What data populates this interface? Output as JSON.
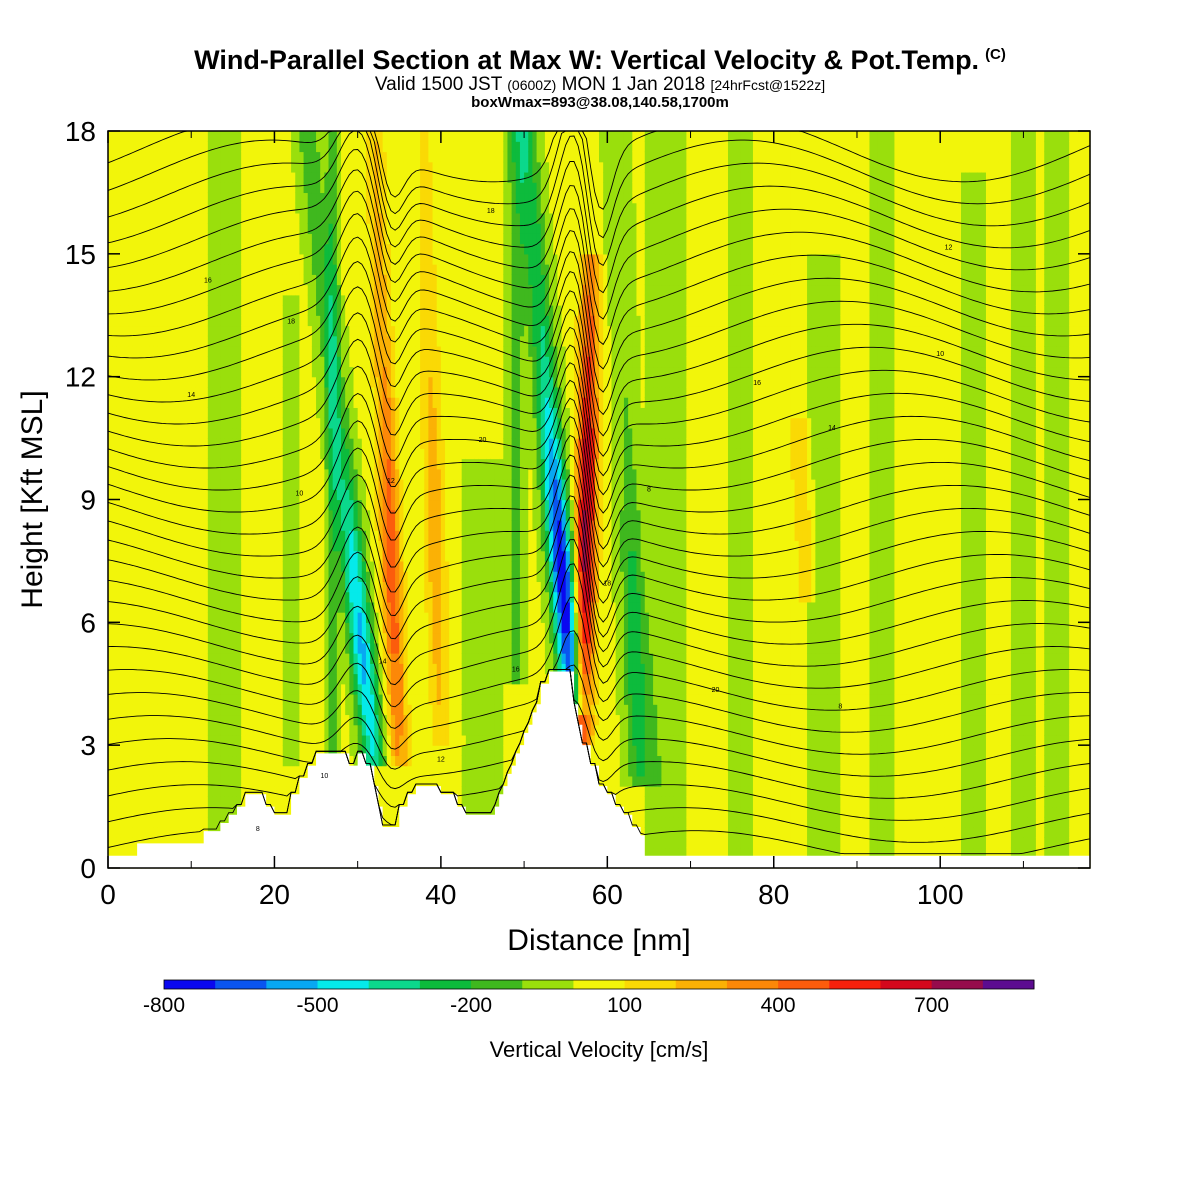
{
  "title": {
    "main": "Wind-Parallel Section at Max W: Vertical Velocity & Pot.Temp.",
    "mark": "(C)",
    "valid_prefix": "Valid 1500 JST",
    "valid_z": "(0600Z)",
    "valid_date": "MON 1 Jan 2018",
    "forecast": "[24hrFcst@1522z]",
    "boxline": "boxWmax=893@38.08,140.58,1700m"
  },
  "chart_data": {
    "type": "heatmap",
    "xlabel": "Distance [nm]",
    "ylabel": "Height [Kft MSL]",
    "xlim": [
      0,
      118
    ],
    "ylim": [
      0,
      18
    ],
    "xticks": [
      0,
      20,
      40,
      60,
      80,
      100
    ],
    "yticks": [
      0,
      3,
      6,
      9,
      12,
      15,
      18
    ],
    "colorbar": {
      "label": "Vertical Velocity [cm/s]",
      "tick_labels": [
        "-800",
        "-500",
        "-200",
        "100",
        "400",
        "700"
      ],
      "tick_values": [
        -800,
        -500,
        -200,
        100,
        400,
        700
      ],
      "levels": [
        -800,
        -700,
        -600,
        -500,
        -400,
        -300,
        -200,
        -100,
        0,
        100,
        200,
        300,
        400,
        500,
        600,
        700,
        800,
        900
      ],
      "colors": [
        "#0a08f0",
        "#0a55f0",
        "#08a8f2",
        "#05eaea",
        "#0bd88c",
        "#0dbb3c",
        "#3fb81e",
        "#9adf0c",
        "#f2f50a",
        "#fad905",
        "#fbb105",
        "#fc8808",
        "#fc5c0c",
        "#f6200c",
        "#d4081c",
        "#960c4c",
        "#5c0c90"
      ]
    },
    "background_velocity": 0,
    "downdrafts": [
      {
        "top_x": 24,
        "bottom_x": 32,
        "top_h": 18,
        "bottom_h": 2.5,
        "min": -550
      },
      {
        "top_x": 50,
        "bottom_x": 56,
        "top_h": 18,
        "bottom_h": 3.8,
        "min": -820
      },
      {
        "top_x": 61,
        "bottom_x": 64,
        "top_h": 18,
        "bottom_h": 2,
        "min": -300
      }
    ],
    "updrafts": [
      {
        "top_x": 32,
        "bottom_x": 35,
        "top_h": 18,
        "bottom_h": 2.5,
        "max": 450
      },
      {
        "top_x": 38,
        "bottom_x": 40,
        "top_h": 18,
        "bottom_h": 3,
        "max": 250
      },
      {
        "top_x": 58,
        "bottom_x": 57,
        "top_h": 15,
        "bottom_h": 3,
        "max": 720
      },
      {
        "top_x": 83,
        "bottom_x": 84,
        "top_h": 11,
        "bottom_h": 6.5,
        "max": 180
      }
    ],
    "weak_downdraft_columns": [
      {
        "x": 14,
        "width": 4,
        "top": 18,
        "bottom": 0.4,
        "value": -80
      },
      {
        "x": 22,
        "width": 2,
        "top": 14,
        "bottom": 2.5,
        "value": -80
      },
      {
        "x": 27,
        "width": 2,
        "top": 18,
        "bottom": 2.5,
        "value": -120
      },
      {
        "x": 45,
        "width": 5,
        "top": 10,
        "bottom": 1.3,
        "value": -80
      },
      {
        "x": 49,
        "width": 3,
        "top": 18,
        "bottom": 4.5,
        "value": -90
      },
      {
        "x": 67,
        "width": 5,
        "top": 18,
        "bottom": 0.3,
        "value": -80
      },
      {
        "x": 76,
        "width": 3,
        "top": 18,
        "bottom": 0.3,
        "value": -80
      },
      {
        "x": 86,
        "width": 4,
        "top": 15,
        "bottom": 0.3,
        "value": -80
      },
      {
        "x": 93,
        "width": 3,
        "top": 18,
        "bottom": 0.3,
        "value": -80
      },
      {
        "x": 104,
        "width": 3,
        "top": 17,
        "bottom": 0.3,
        "value": -80
      },
      {
        "x": 110,
        "width": 3,
        "top": 18,
        "bottom": 0.3,
        "value": -80
      },
      {
        "x": 114,
        "width": 3,
        "top": 18,
        "bottom": 0.3,
        "value": -70
      }
    ],
    "terrain": {
      "x": [
        0,
        3,
        3.5,
        11,
        11.5,
        13,
        13.5,
        14,
        14.5,
        15,
        15.5,
        16,
        16.5,
        18.5,
        19,
        19.5,
        20,
        21,
        22,
        23,
        24,
        25,
        26,
        26.5,
        29,
        29.5,
        30,
        30.5,
        31,
        31.5,
        32,
        32.5,
        33,
        34,
        35,
        35.5,
        36,
        36.5,
        37,
        38,
        39,
        40,
        40.5,
        41,
        42,
        43,
        44,
        46,
        46.5,
        47,
        47.5,
        48,
        48.5,
        49,
        49.5,
        50,
        50.5,
        51,
        51.5,
        52,
        53,
        54,
        55,
        56,
        56.5,
        57,
        58,
        59,
        60,
        61,
        62,
        63,
        64,
        64.5,
        118
      ],
      "h": [
        0.3,
        0.3,
        0.6,
        0.6,
        0.9,
        0.9,
        1.1,
        1.1,
        1.3,
        1.3,
        1.5,
        1.5,
        1.8,
        1.8,
        1.5,
        1.5,
        1.3,
        1.3,
        1.8,
        2.2,
        2.5,
        2.8,
        2.8,
        2.8,
        2.5,
        2.5,
        2.8,
        2.8,
        2.5,
        2.5,
        2.0,
        1.5,
        1.0,
        1.0,
        1.5,
        1.5,
        1.8,
        1.8,
        2.0,
        2.0,
        2.0,
        1.8,
        1.8,
        1.8,
        1.5,
        1.3,
        1.3,
        1.3,
        1.5,
        1.8,
        2.0,
        2.3,
        2.5,
        2.8,
        3.0,
        3.3,
        3.5,
        3.8,
        4.0,
        4.5,
        4.8,
        4.8,
        4.8,
        4.0,
        3.5,
        3.0,
        2.5,
        2.0,
        1.8,
        1.5,
        1.3,
        1.0,
        0.8,
        0.3,
        0.3
      ]
    },
    "isentropes": {
      "count": 32,
      "bottom": 0.5,
      "spacing": 0.55,
      "labels": [
        "8",
        "10",
        "12",
        "14",
        "16",
        "18",
        "20"
      ]
    }
  }
}
